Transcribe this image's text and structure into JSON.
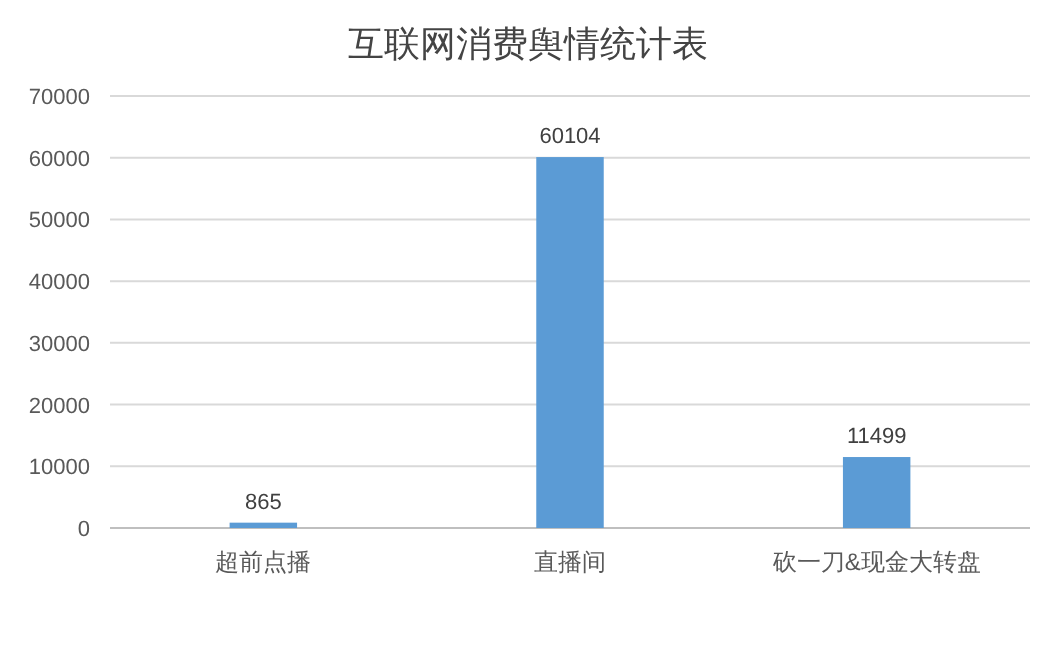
{
  "chart_data": {
    "type": "bar",
    "title": "互联网消费舆情统计表",
    "categories": [
      "超前点播",
      "直播间",
      "砍一刀&现金大转盘"
    ],
    "values": [
      865,
      60104,
      11499
    ],
    "color": "#5b9bd5",
    "ylim": [
      0,
      70000
    ],
    "yticks": [
      0,
      10000,
      20000,
      30000,
      40000,
      50000,
      60000,
      70000
    ],
    "grid": "y",
    "data_labels": true
  }
}
